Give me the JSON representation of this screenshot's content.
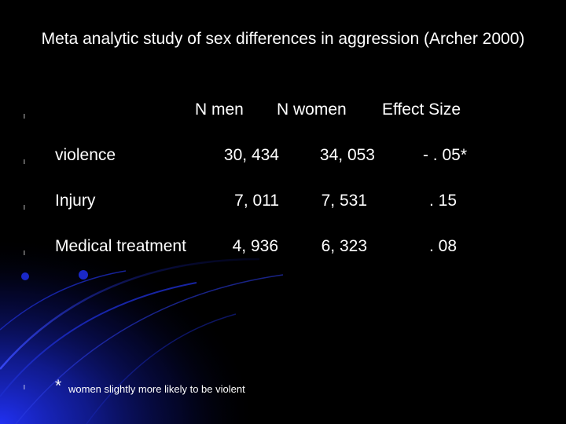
{
  "slide": {
    "title": "Meta analytic study of sex differences in aggression (Archer 2000)",
    "bullet_glyph": "l",
    "header": {
      "n_men": "N men",
      "n_women": "N women",
      "effect_size": "Effect Size"
    },
    "rows": [
      {
        "label": "violence",
        "n_men": "30, 434",
        "n_women": "34, 053",
        "effect_size": "- . 05*"
      },
      {
        "label": "Injury",
        "n_men": "7, 011",
        "n_women": "7, 531",
        "effect_size": ". 15"
      },
      {
        "label": "Medical treatment",
        "n_men": "4, 936",
        "n_women": "6, 323",
        "effect_size": ". 08"
      }
    ],
    "footnote": {
      "star": "*",
      "text": "women slightly more likely to be violent"
    }
  },
  "colors": {
    "background": "#000000",
    "text": "#ffffff",
    "accent_blue": "#1a2fd6",
    "accent_dark_blue": "#0a1270"
  }
}
